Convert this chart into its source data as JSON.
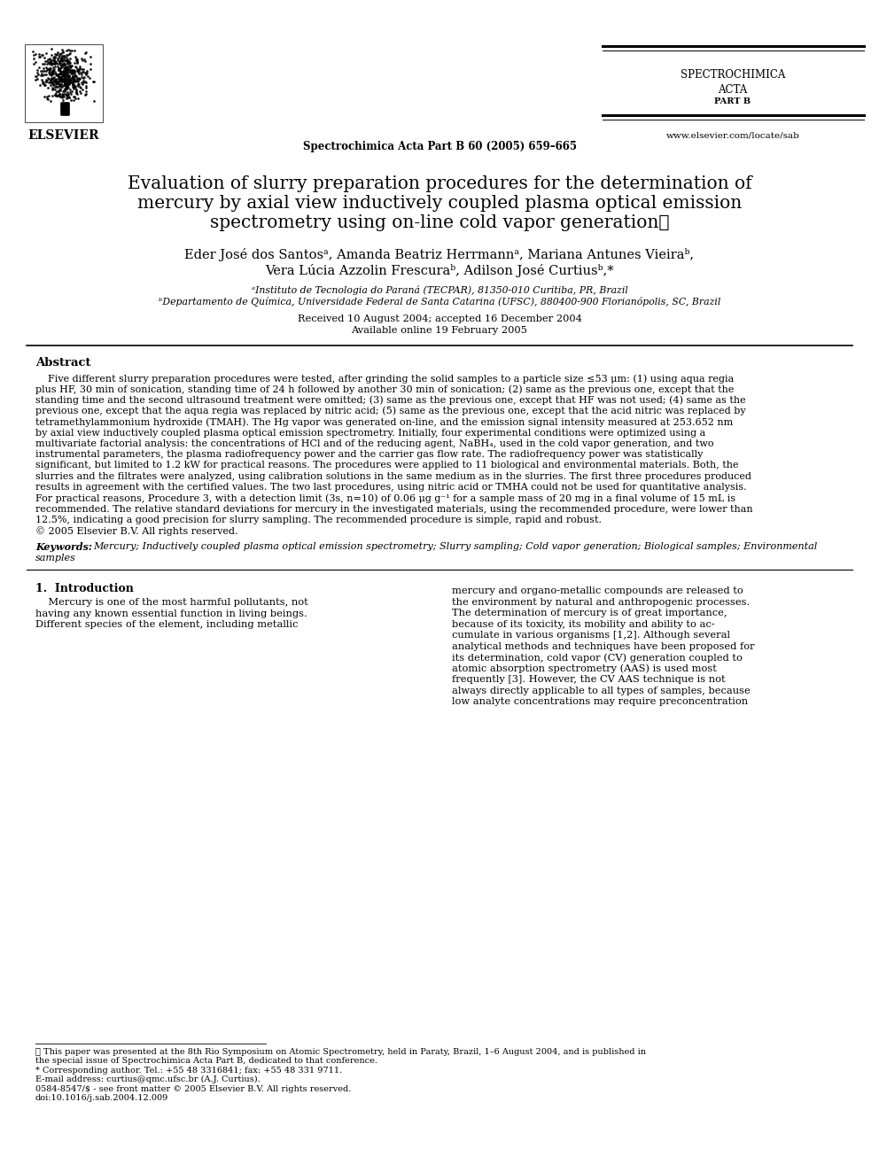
{
  "bg_color": "#ffffff",
  "journal_header_center": "Spectrochimica Acta Part B 60 (2005) 659–665",
  "journal_name_line1": "SPECTROCHIMICA",
  "journal_name_line2": "ACTA",
  "journal_name_line3": "PART B",
  "journal_url": "www.elsevier.com/locate/sab",
  "publisher": "ELSEVIER",
  "title_line1": "Evaluation of slurry preparation procedures for the determination of",
  "title_line2": "mercury by axial view inductively coupled plasma optical emission",
  "title_line3": "spectrometry using on-line cold vapor generation☆",
  "author_line1": "Eder José dos Santosᵃ, Amanda Beatriz Herrmannᵃ, Mariana Antunes Vieiraᵇ,",
  "author_line2": "Vera Lúcia Azzolin Frescuraᵇ, Adilson José Curtiusᵇ,*",
  "affil_a": "ᵃInstituto de Tecnologia do Paraná (TECPAR), 81350-010 Curitiba, PR, Brazil",
  "affil_b": "ᵇDepartamento de Química, Universidade Federal de Santa Catarina (UFSC), 880400-900 Florianópolis, SC, Brazil",
  "received": "Received 10 August 2004; accepted 16 December 2004",
  "available": "Available online 19 February 2005",
  "abstract_title": "Abstract",
  "abstract_lines": [
    "    Five different slurry preparation procedures were tested, after grinding the solid samples to a particle size ≤53 μm: (1) using aqua regia",
    "plus HF, 30 min of sonication, standing time of 24 h followed by another 30 min of sonication; (2) same as the previous one, except that the",
    "standing time and the second ultrasound treatment were omitted; (3) same as the previous one, except that HF was not used; (4) same as the",
    "previous one, except that the aqua regia was replaced by nitric acid; (5) same as the previous one, except that the acid nitric was replaced by",
    "tetramethylammonium hydroxide (TMAH). The Hg vapor was generated on-line, and the emission signal intensity measured at 253.652 nm",
    "by axial view inductively coupled plasma optical emission spectrometry. Initially, four experimental conditions were optimized using a",
    "multivariate factorial analysis: the concentrations of HCl and of the reducing agent, NaBH₄, used in the cold vapor generation, and two",
    "instrumental parameters, the plasma radiofrequency power and the carrier gas flow rate. The radiofrequency power was statistically",
    "significant, but limited to 1.2 kW for practical reasons. The procedures were applied to 11 biological and environmental materials. Both, the",
    "slurries and the filtrates were analyzed, using calibration solutions in the same medium as in the slurries. The first three procedures produced",
    "results in agreement with the certified values. The two last procedures, using nitric acid or TMHA could not be used for quantitative analysis.",
    "For practical reasons, Procedure 3, with a detection limit (3s, n=10) of 0.06 μg g⁻¹ for a sample mass of 20 mg in a final volume of 15 mL is",
    "recommended. The relative standard deviations for mercury in the investigated materials, using the recommended procedure, were lower than",
    "12.5%, indicating a good precision for slurry sampling. The recommended procedure is simple, rapid and robust.",
    "© 2005 Elsevier B.V. All rights reserved."
  ],
  "keywords_label": "Keywords:",
  "keywords_line1": "Mercury; Inductively coupled plasma optical emission spectrometry; Slurry sampling; Cold vapor generation; Biological samples; Environmental",
  "keywords_line2": "samples",
  "section1_title": "1.  Introduction",
  "col1_lines": [
    "    Mercury is one of the most harmful pollutants, not",
    "having any known essential function in living beings.",
    "Different species of the element, including metallic"
  ],
  "col2_lines": [
    "mercury and organo-metallic compounds are released to",
    "the environment by natural and anthropogenic processes.",
    "The determination of mercury is of great importance,",
    "because of its toxicity, its mobility and ability to ac-",
    "cumulate in various organisms [1,2]. Although several",
    "analytical methods and techniques have been proposed for",
    "its determination, cold vapor (CV) generation coupled to",
    "atomic absorption spectrometry (AAS) is used most",
    "frequently [3]. However, the CV AAS technique is not",
    "always directly applicable to all types of samples, because",
    "low analyte concentrations may require preconcentration"
  ],
  "footnote_star_lines": [
    "★ This paper was presented at the 8th Rio Symposium on Atomic Spectrometry, held in Paraty, Brazil, 1–6 August 2004, and is published in",
    "the special issue of Spectrochimica Acta Part B, dedicated to that conference."
  ],
  "footnote_corr": "* Corresponding author. Tel.: +55 48 3316841; fax: +55 48 331 9711.",
  "footnote_email": "E-mail address: curtius@qmc.ufsc.br (A.J. Curtius).",
  "footnote_issn": "0584-8547/$ - see front matter © 2005 Elsevier B.V. All rights reserved.",
  "footnote_doi": "doi:10.1016/j.sab.2004.12.009"
}
